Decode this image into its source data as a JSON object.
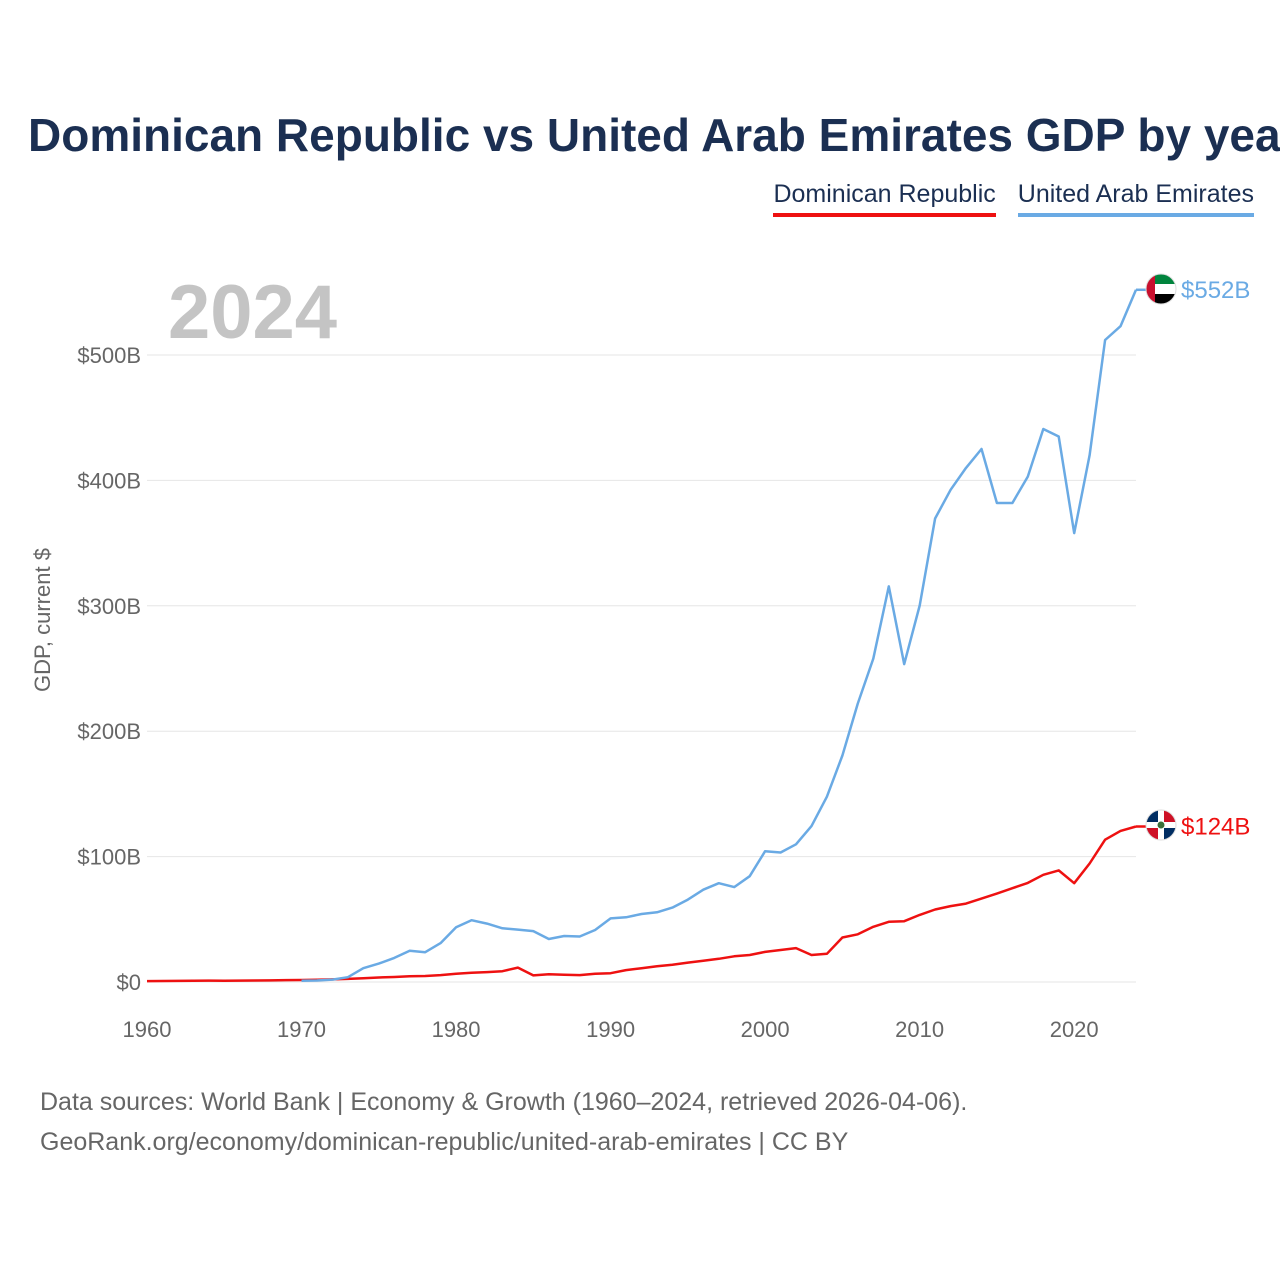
{
  "title": "Dominican Republic vs United Arab Emirates GDP by year",
  "legend": [
    {
      "label": "Dominican Republic",
      "color": "#ee1111"
    },
    {
      "label": "United Arab Emirates",
      "color": "#6aaae4"
    }
  ],
  "footer": {
    "line1": "Data sources: World Bank | Economy & Growth (1960–2024, retrieved 2026-04-06).",
    "line2": "GeoRank.org/economy/dominican-republic/united-arab-emirates | CC BY"
  },
  "chart_data": {
    "type": "line",
    "title": "Dominican Republic vs United Arab Emirates GDP by year",
    "year_label": "2024",
    "ylabel": "GDP, current $",
    "xlabel": "",
    "xlim": [
      1960,
      2024
    ],
    "ylim": [
      0,
      552
    ],
    "y_unit": "billions USD",
    "x_ticks": [
      1960,
      1970,
      1980,
      1990,
      2000,
      2010,
      2020
    ],
    "x_tick_labels": [
      "1960",
      "1970",
      "1980",
      "1990",
      "2000",
      "2010",
      "2020"
    ],
    "y_ticks": [
      0,
      100,
      200,
      300,
      400,
      500
    ],
    "y_tick_labels": [
      "$0",
      "$100B",
      "$200B",
      "$300B",
      "$400B",
      "$500B"
    ],
    "grid": true,
    "series": [
      {
        "name": "Dominican Republic",
        "color": "#ee1111",
        "end_label": "$124B",
        "flag": "dominican-republic-flag",
        "x": [
          1960,
          1961,
          1962,
          1963,
          1964,
          1965,
          1966,
          1967,
          1968,
          1969,
          1970,
          1971,
          1972,
          1973,
          1974,
          1975,
          1976,
          1977,
          1978,
          1979,
          1980,
          1981,
          1982,
          1983,
          1984,
          1985,
          1986,
          1987,
          1988,
          1989,
          1990,
          1991,
          1992,
          1993,
          1994,
          1995,
          1996,
          1997,
          1998,
          1999,
          2000,
          2001,
          2002,
          2003,
          2004,
          2005,
          2006,
          2007,
          2008,
          2009,
          2010,
          2011,
          2012,
          2013,
          2014,
          2015,
          2016,
          2017,
          2018,
          2019,
          2020,
          2021,
          2022,
          2023,
          2024
        ],
        "values": [
          0.7,
          0.8,
          0.9,
          1.0,
          1.1,
          1.0,
          1.1,
          1.2,
          1.3,
          1.5,
          1.6,
          1.8,
          2.1,
          2.5,
          3.0,
          3.6,
          4.0,
          4.6,
          4.8,
          5.5,
          6.6,
          7.3,
          7.9,
          8.6,
          11.5,
          5.3,
          6.2,
          5.8,
          5.5,
          6.6,
          7.0,
          9.5,
          11.0,
          12.5,
          13.8,
          15.5,
          17.0,
          18.5,
          20.5,
          21.5,
          24.0,
          25.5,
          27.0,
          21.5,
          22.5,
          35.5,
          38.0,
          44.0,
          48.0,
          48.5,
          53.5,
          57.8,
          60.5,
          62.5,
          66.5,
          70.5,
          74.8,
          79.0,
          85.5,
          89.0,
          78.8,
          94.5,
          113.5,
          120.5,
          124.0
        ]
      },
      {
        "name": "United Arab Emirates",
        "color": "#6aaae4",
        "end_label": "$552B",
        "flag": "uae-flag",
        "x": [
          1970,
          1971,
          1972,
          1973,
          1974,
          1975,
          1976,
          1977,
          1978,
          1979,
          1980,
          1981,
          1982,
          1983,
          1984,
          1985,
          1986,
          1987,
          1988,
          1989,
          1990,
          1991,
          1992,
          1993,
          1994,
          1995,
          1996,
          1997,
          1998,
          1999,
          2000,
          2001,
          2002,
          2003,
          2004,
          2005,
          2006,
          2007,
          2008,
          2009,
          2010,
          2011,
          2012,
          2013,
          2014,
          2015,
          2016,
          2017,
          2018,
          2019,
          2020,
          2021,
          2022,
          2023,
          2024
        ],
        "values": [
          1.0,
          1.2,
          1.9,
          3.8,
          11.0,
          14.7,
          19.2,
          24.9,
          23.8,
          31.0,
          43.6,
          49.3,
          46.6,
          42.8,
          41.8,
          40.6,
          34.3,
          36.7,
          36.3,
          41.5,
          50.7,
          51.6,
          54.2,
          55.6,
          59.3,
          65.7,
          73.6,
          78.8,
          75.7,
          84.4,
          104.3,
          103.3,
          109.8,
          124.3,
          147.8,
          180.6,
          222.1,
          257.9,
          315.5,
          253.5,
          300.2,
          369.6,
          392.5,
          410.0,
          425.0,
          382.0,
          382.0,
          403.0,
          441.0,
          435.0,
          358.0,
          420.0,
          512.0,
          523.0,
          552.0
        ]
      }
    ]
  }
}
